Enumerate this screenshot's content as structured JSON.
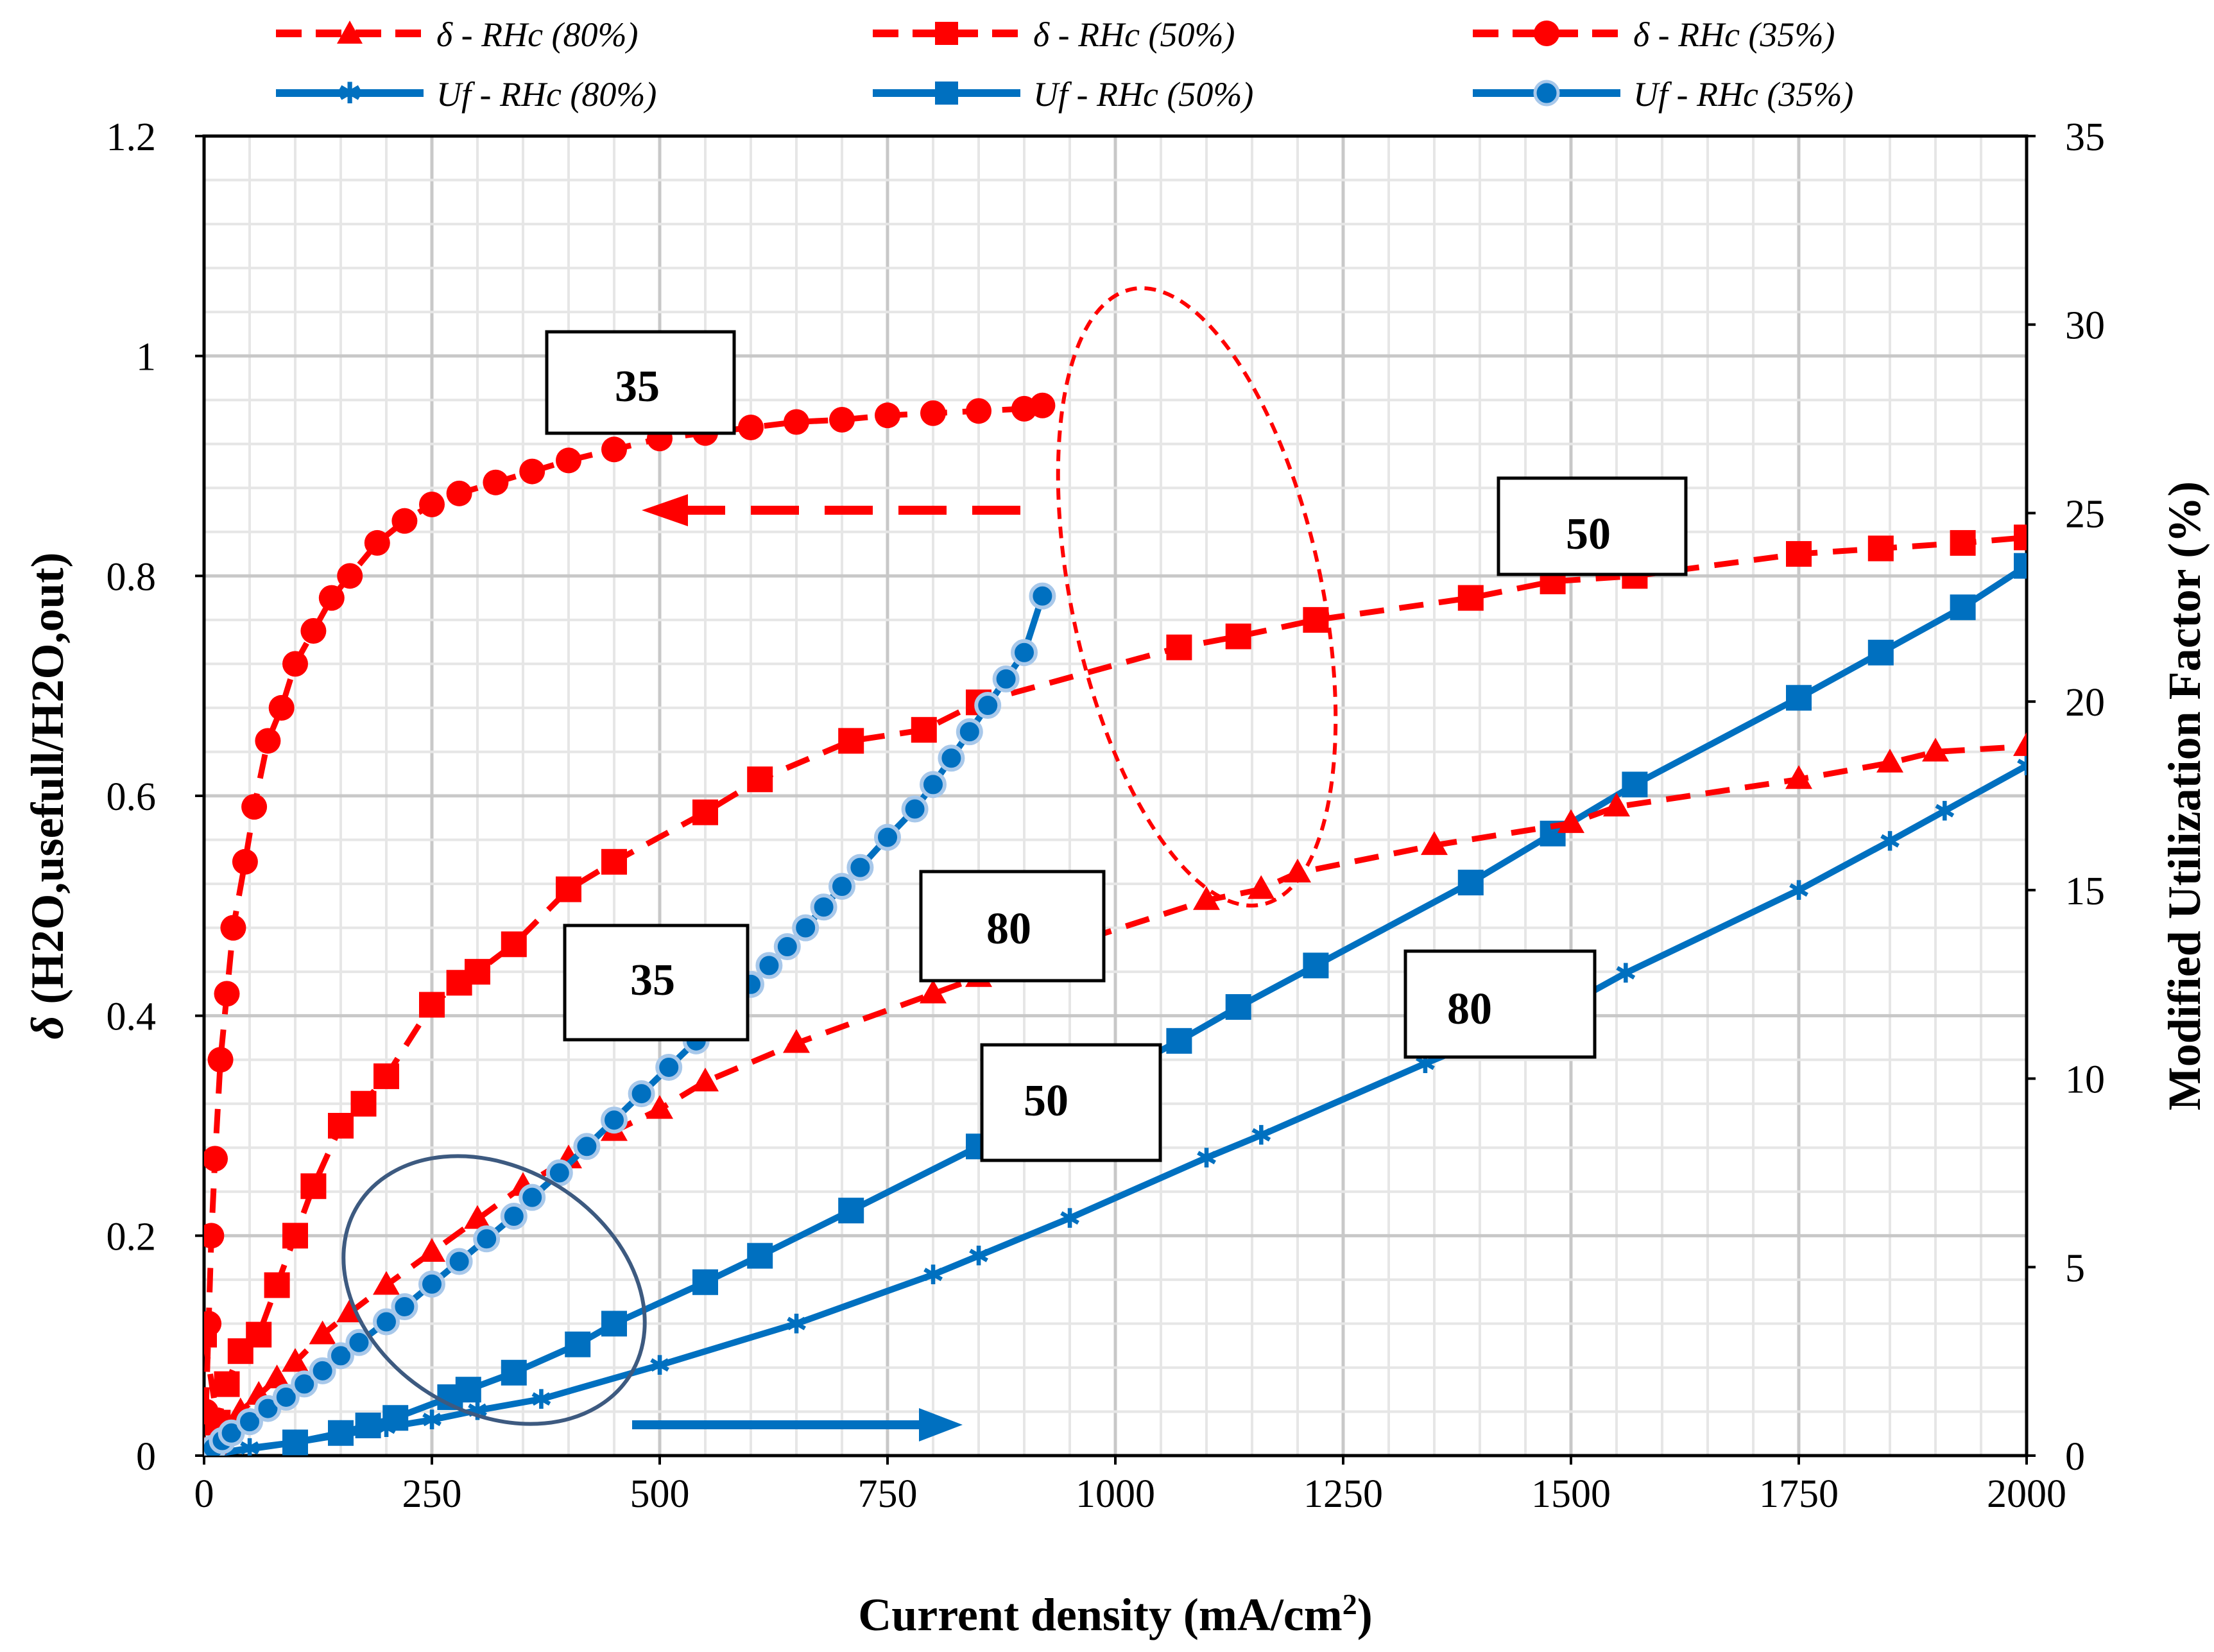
{
  "colors": {
    "red": "#ff0000",
    "blue": "#0070c0",
    "blue_marker_edge": "#a8c8ea",
    "ellipse_blue": "#3d5a80",
    "grid_major": "#c8c8c8",
    "grid_minor": "#e6e6e6"
  },
  "chart_data": {
    "type": "line",
    "xlabel_main": "Current density (mA/cm",
    "xlabel_sup": "2",
    "xlabel_end": ")",
    "ylabel_left_symbol": "δ",
    "ylabel_left": " (H2O,usefull/H2O,out)",
    "ylabel_right": "Modified Utilization Factor (%)",
    "xlim": [
      0,
      2000
    ],
    "ylim_left": [
      0,
      1.2
    ],
    "ylim_right": [
      0,
      35
    ],
    "x_ticks": [
      "0",
      "250",
      "500",
      "750",
      "1000",
      "1250",
      "1500",
      "1750",
      "2000"
    ],
    "x_tick_values": [
      0,
      250,
      500,
      750,
      1000,
      1250,
      1500,
      1750,
      2000
    ],
    "y_left_ticks": [
      "0",
      "0.2",
      "0.4",
      "0.6",
      "0.8",
      "1",
      "1.2"
    ],
    "y_left_tick_values": [
      0,
      0.2,
      0.4,
      0.6,
      0.8,
      1.0,
      1.2
    ],
    "y_right_ticks": [
      "0",
      "5",
      "10",
      "15",
      "20",
      "25",
      "30",
      "35"
    ],
    "y_right_tick_values": [
      0,
      5,
      10,
      15,
      20,
      25,
      30,
      35
    ],
    "legend": [
      {
        "symbol": "δ",
        "label": " - RHc (80%)",
        "line": "dashed",
        "marker": "triangle",
        "color": "red"
      },
      {
        "symbol": "δ",
        "label": " - RHc (50%)",
        "line": "dashed",
        "marker": "square",
        "color": "red"
      },
      {
        "symbol": "δ",
        "label": " - RHc (35%)",
        "line": "dashed",
        "marker": "circle",
        "color": "red"
      },
      {
        "symbol": "Uf",
        "label": " - RHc (80%)",
        "line": "solid",
        "marker": "star",
        "color": "blue"
      },
      {
        "symbol": "Uf",
        "label": " - RHc (50%)",
        "line": "solid",
        "marker": "square",
        "color": "blue"
      },
      {
        "symbol": "Uf",
        "label": " - RHc (35%)",
        "line": "solid",
        "marker": "circle",
        "color": "blue"
      }
    ],
    "series": [
      {
        "name": "δ - RHc (80%)",
        "axis": "left",
        "style": "dashed",
        "marker": "triangle",
        "color": "red",
        "x": [
          0,
          10,
          20,
          40,
          60,
          80,
          100,
          130,
          160,
          200,
          250,
          300,
          350,
          400,
          450,
          500,
          550,
          650,
          800,
          850,
          950,
          1100,
          1160,
          1200,
          1350,
          1500,
          1550,
          1750,
          1850,
          1900,
          2000
        ],
        "y": [
          0.005,
          0.01,
          0.02,
          0.04,
          0.055,
          0.07,
          0.085,
          0.11,
          0.13,
          0.155,
          0.185,
          0.215,
          0.245,
          0.27,
          0.295,
          0.315,
          0.34,
          0.375,
          0.42,
          0.435,
          0.465,
          0.505,
          0.515,
          0.53,
          0.555,
          0.575,
          0.59,
          0.615,
          0.63,
          0.64,
          0.645
        ]
      },
      {
        "name": "δ - RHc (50%)",
        "axis": "left",
        "style": "dashed",
        "marker": "square",
        "color": "red",
        "x": [
          0,
          15,
          25,
          40,
          60,
          80,
          100,
          120,
          150,
          175,
          200,
          250,
          280,
          300,
          340,
          400,
          450,
          550,
          610,
          710,
          790,
          850,
          1070,
          1135,
          1220,
          1390,
          1480,
          1570,
          1750,
          1840,
          1930,
          2000
        ],
        "y": [
          0.11,
          0.03,
          0.065,
          0.095,
          0.11,
          0.155,
          0.2,
          0.245,
          0.3,
          0.32,
          0.345,
          0.41,
          0.43,
          0.44,
          0.465,
          0.515,
          0.54,
          0.585,
          0.615,
          0.65,
          0.66,
          0.685,
          0.735,
          0.745,
          0.76,
          0.78,
          0.795,
          0.8,
          0.82,
          0.825,
          0.83,
          0.835
        ]
      },
      {
        "name": "δ - RHc (35%)",
        "axis": "left",
        "style": "dashed",
        "marker": "circle",
        "color": "red",
        "x": [
          2,
          5,
          8,
          12,
          18,
          25,
          32,
          45,
          55,
          70,
          85,
          100,
          120,
          140,
          160,
          190,
          220,
          250,
          280,
          320,
          360,
          400,
          450,
          500,
          550,
          600,
          650,
          700,
          750,
          800,
          850,
          900,
          920
        ],
        "y": [
          0.04,
          0.12,
          0.2,
          0.27,
          0.36,
          0.42,
          0.48,
          0.54,
          0.59,
          0.65,
          0.68,
          0.72,
          0.75,
          0.78,
          0.8,
          0.83,
          0.85,
          0.865,
          0.875,
          0.885,
          0.895,
          0.905,
          0.915,
          0.925,
          0.93,
          0.935,
          0.94,
          0.942,
          0.946,
          0.948,
          0.95,
          0.952,
          0.955
        ]
      },
      {
        "name": "Uf - RHc (80%)",
        "axis": "right",
        "style": "solid",
        "marker": "star",
        "color": "blue",
        "x": [
          0,
          50,
          100,
          150,
          200,
          250,
          300,
          370,
          500,
          650,
          800,
          850,
          950,
          1100,
          1160,
          1340,
          1500,
          1560,
          1750,
          1850,
          1910,
          2000
        ],
        "y": [
          0,
          0.2,
          0.35,
          0.55,
          0.75,
          0.95,
          1.2,
          1.5,
          2.4,
          3.5,
          4.8,
          5.3,
          6.3,
          7.9,
          8.5,
          10.4,
          12.0,
          12.8,
          15.0,
          16.3,
          17.1,
          18.3
        ]
      },
      {
        "name": "Uf - RHc (50%)",
        "axis": "right",
        "style": "solid",
        "marker": "square",
        "color": "blue",
        "x": [
          0,
          100,
          150,
          180,
          210,
          270,
          290,
          340,
          410,
          450,
          550,
          610,
          710,
          850,
          1070,
          1135,
          1220,
          1390,
          1480,
          1570,
          1750,
          1840,
          1930,
          2000
        ],
        "y": [
          0,
          0.35,
          0.6,
          0.8,
          1.0,
          1.55,
          1.75,
          2.2,
          2.95,
          3.5,
          4.6,
          5.3,
          6.5,
          8.2,
          11.0,
          11.9,
          13.0,
          15.2,
          16.5,
          17.8,
          20.1,
          21.3,
          22.5,
          23.6
        ]
      },
      {
        "name": "Uf - RHc (35%)",
        "axis": "right",
        "style": "solid",
        "marker": "circle",
        "color": "blue",
        "x": [
          0,
          10,
          20,
          30,
          50,
          70,
          90,
          110,
          130,
          150,
          170,
          200,
          220,
          250,
          280,
          310,
          340,
          360,
          390,
          420,
          450,
          480,
          510,
          540,
          560,
          580,
          600,
          620,
          640,
          660,
          680,
          700,
          720,
          750,
          780,
          800,
          820,
          840,
          860,
          880,
          900,
          920
        ],
        "y": [
          0,
          0.2,
          0.4,
          0.6,
          0.9,
          1.25,
          1.55,
          1.9,
          2.25,
          2.65,
          3.0,
          3.55,
          3.95,
          4.55,
          5.15,
          5.75,
          6.35,
          6.85,
          7.5,
          8.2,
          8.9,
          9.6,
          10.3,
          11.0,
          11.5,
          11.95,
          12.5,
          13.0,
          13.5,
          14.0,
          14.55,
          15.1,
          15.6,
          16.4,
          17.15,
          17.8,
          18.5,
          19.2,
          19.9,
          20.6,
          21.3,
          22.8
        ]
      }
    ],
    "annotations": [
      {
        "text": "35",
        "group": "delta"
      },
      {
        "text": "50",
        "group": "delta"
      },
      {
        "text": "80",
        "group": "delta"
      },
      {
        "text": "35",
        "group": "uf"
      },
      {
        "text": "50",
        "group": "uf"
      },
      {
        "text": "80",
        "group": "uf"
      }
    ]
  }
}
